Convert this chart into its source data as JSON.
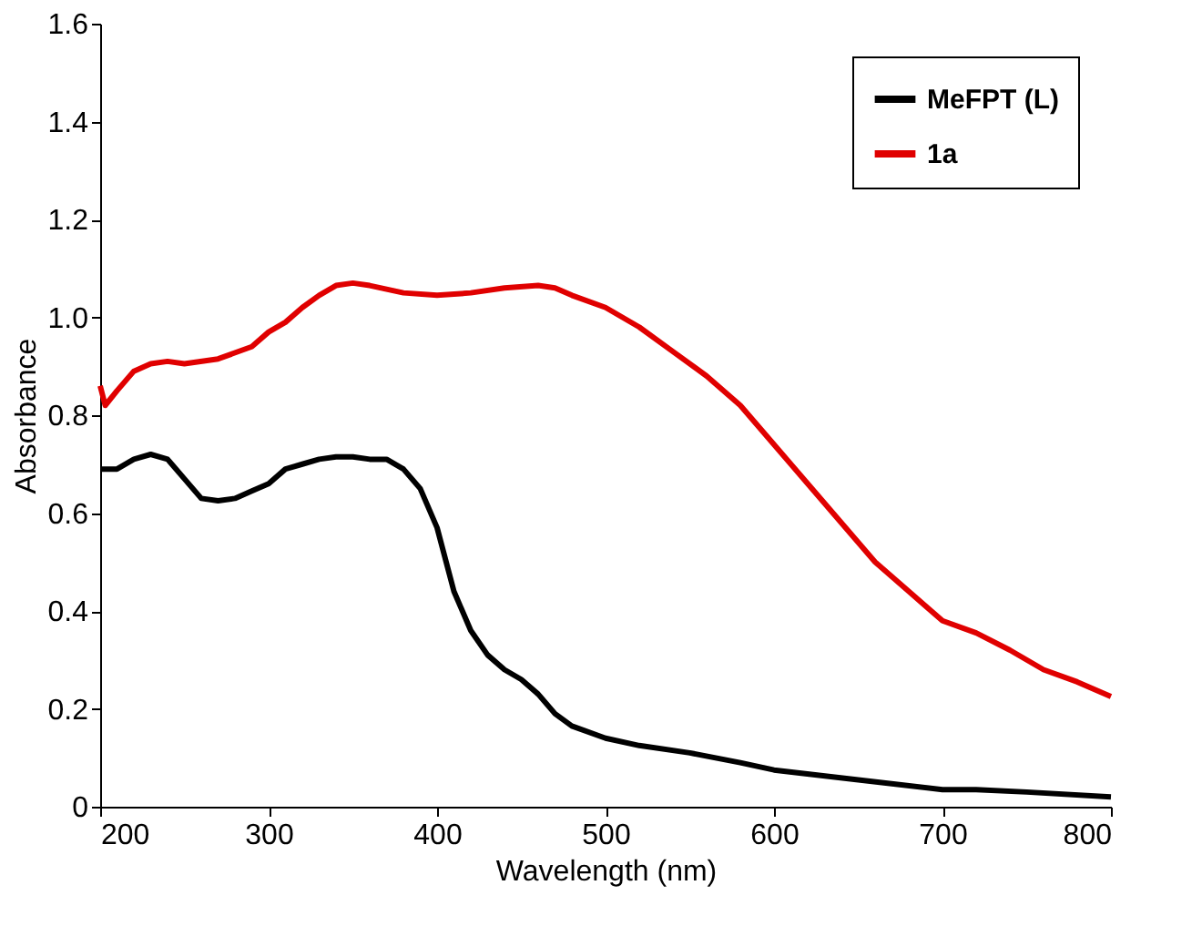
{
  "chart_data": {
    "type": "line",
    "xlabel": "Wavelength (nm)",
    "ylabel": "Absorbance",
    "xlim": [
      200,
      800
    ],
    "xticks": [
      200,
      300,
      400,
      500,
      600,
      700,
      800
    ],
    "ylim": [
      0,
      1.6
    ],
    "yticks": [
      0,
      0.2,
      0.4,
      0.6,
      0.8,
      {
        "value": 1,
        "label": "1.0"
      },
      1.2,
      1.4,
      1.6
    ],
    "grid": false,
    "legend": "top right",
    "line_style": "solid",
    "marker": "none",
    "series": [
      {
        "name": "MeFPT (L)",
        "color": "#000000",
        "x": [
          200,
          210,
          220,
          230,
          240,
          250,
          260,
          270,
          280,
          290,
          300,
          310,
          320,
          330,
          340,
          350,
          360,
          370,
          380,
          390,
          400,
          410,
          420,
          430,
          440,
          450,
          460,
          470,
          480,
          500,
          520,
          550,
          580,
          600,
          650,
          700,
          720,
          750,
          800
        ],
        "values": [
          0.69,
          0.69,
          0.71,
          0.72,
          0.71,
          0.67,
          0.63,
          0.625,
          0.63,
          0.645,
          0.66,
          0.69,
          0.7,
          0.71,
          0.715,
          0.715,
          0.71,
          0.71,
          0.69,
          0.65,
          0.57,
          0.44,
          0.36,
          0.31,
          0.28,
          0.26,
          0.23,
          0.19,
          0.165,
          0.14,
          0.125,
          0.11,
          0.09,
          0.075,
          0.055,
          0.035,
          0.035,
          0.03,
          0.02
        ]
      },
      {
        "name": "1a",
        "color": "#e00000",
        "x": [
          200,
          203,
          210,
          220,
          230,
          240,
          250,
          270,
          290,
          300,
          310,
          320,
          330,
          340,
          350,
          360,
          380,
          400,
          420,
          440,
          460,
          470,
          480,
          500,
          520,
          540,
          560,
          580,
          600,
          620,
          640,
          660,
          680,
          700,
          720,
          740,
          760,
          780,
          800
        ],
        "values": [
          0.86,
          0.82,
          0.85,
          0.89,
          0.905,
          0.91,
          0.905,
          0.915,
          0.94,
          0.97,
          0.99,
          1.02,
          1.045,
          1.065,
          1.07,
          1.065,
          1.05,
          1.045,
          1.05,
          1.06,
          1.065,
          1.06,
          1.045,
          1.02,
          0.98,
          0.93,
          0.88,
          0.82,
          0.74,
          0.66,
          0.58,
          0.5,
          0.44,
          0.38,
          0.355,
          0.32,
          0.28,
          0.255,
          0.225
        ]
      }
    ]
  }
}
